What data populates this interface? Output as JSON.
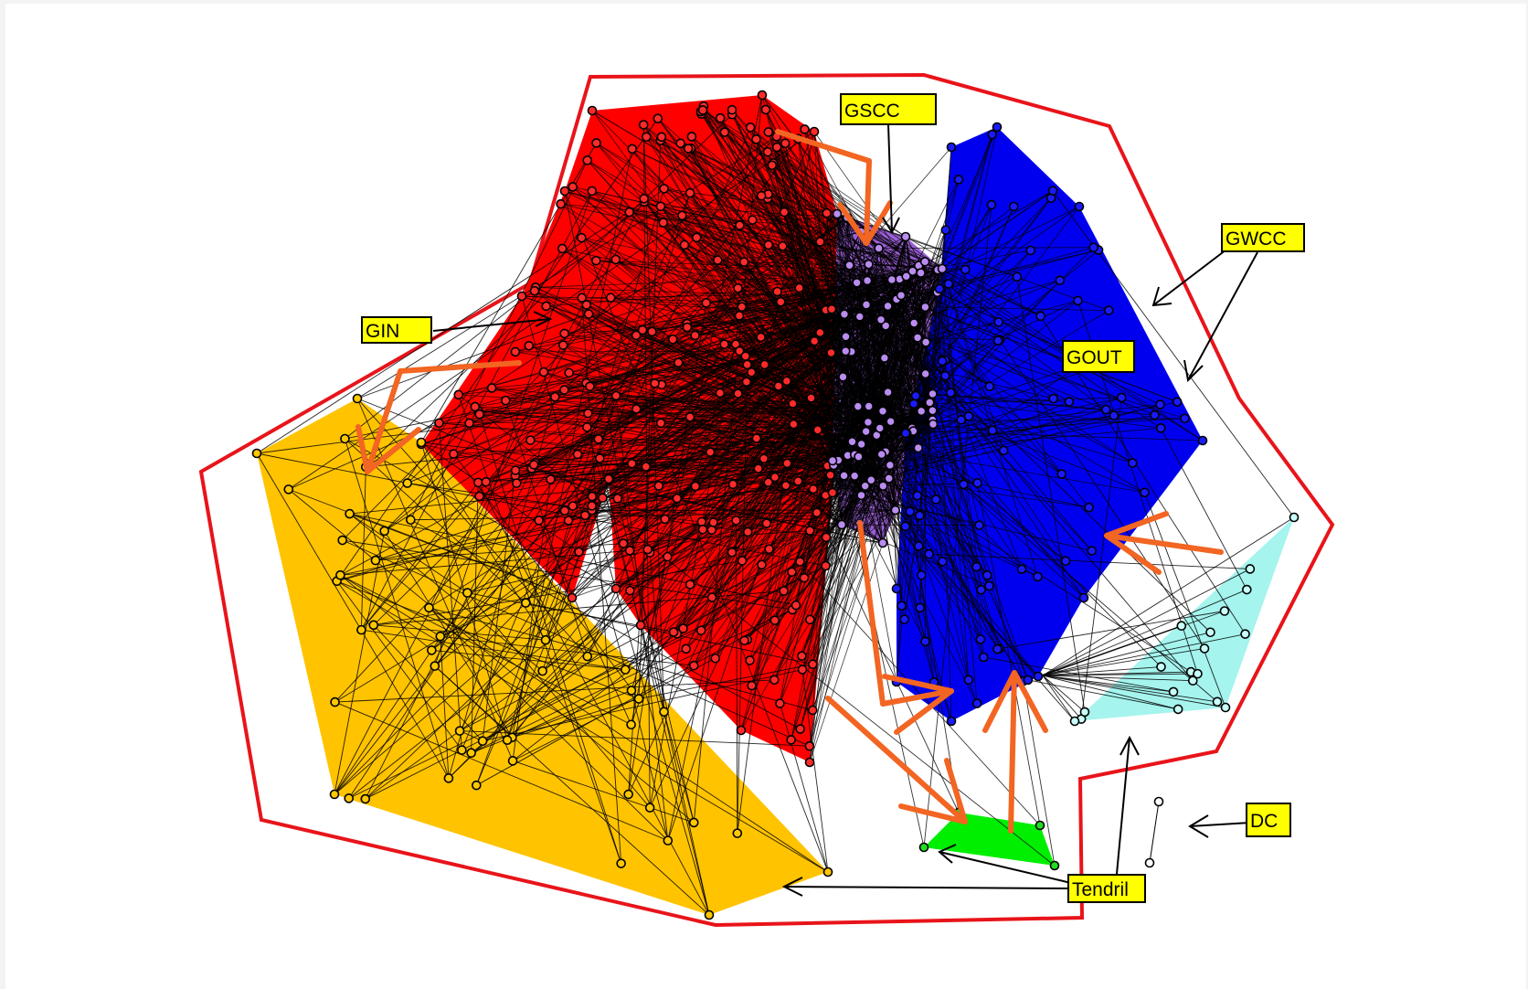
{
  "labels": {
    "gscc": "GSCC",
    "gwcc": "GWCC",
    "gin": "GIN",
    "gout": "GOUT",
    "dc": "DC",
    "tendril": "Tendril"
  },
  "colors": {
    "boundary": "#e8141a",
    "gin_region": "#ff0000",
    "gscc_region": "#9b5fd6",
    "gout_region": "#0000ee",
    "tendril_in_region": "#ffc300",
    "tendril_out_region": "#a5f4ee",
    "tube_region": "#00ee00",
    "label_box": "#ffff00",
    "arrow_flow": "#f26522",
    "edge": "#000000",
    "node_gscc": "#b98cf0",
    "node_gin": "#ff2a2a",
    "node_gout": "#1a1aff",
    "node_tendril_in": "#ffc800",
    "node_tendril_out": "#c8fff8",
    "node_tube": "#22dd22",
    "node_dc": "#ffffff"
  }
}
